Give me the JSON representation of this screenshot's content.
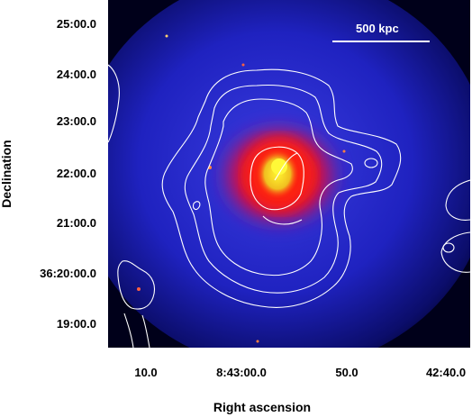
{
  "image": {
    "description_colors": {
      "background": "#000010",
      "outer_emission": "#1a20c8",
      "core_red": "#ff1a10",
      "core_yellow": "#fff020",
      "contours": "#ffffff"
    }
  },
  "scale_bar": {
    "label": "500 kpc"
  },
  "axes": {
    "ylabel": "Declination",
    "xlabel": "Right ascension",
    "yticks": [
      "25:00.0",
      "24:00.0",
      "23:00.0",
      "22:00.0",
      "21:00.0",
      "36:20:00.0",
      "19:00.0"
    ],
    "xticks": [
      "10.0",
      "8:43:00.0",
      "50.0",
      "42:40.0"
    ]
  }
}
